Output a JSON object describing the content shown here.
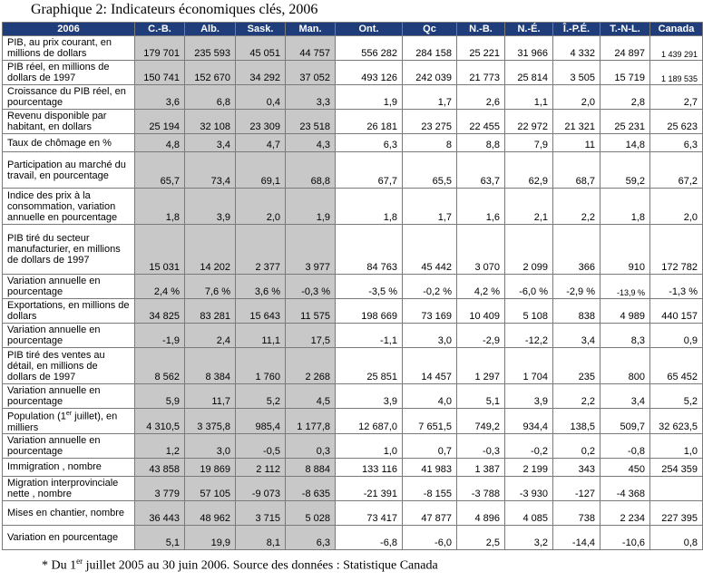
{
  "title": "Graphique 2: Indicateurs économiques clés, 2006",
  "footnote": {
    "prefix": "* Du 1",
    "sup": "er",
    "suffix": " juillet 2005 au 30 juin 2006. Source des données : Statistique Canada"
  },
  "columns": [
    "2006",
    "C.-B.",
    "Alb.",
    "Sask.",
    "Man.",
    "Ont.",
    "Qc",
    "N.-B.",
    "N.-É.",
    "Î.-P.É.",
    "T.-N-L.",
    "Canada"
  ],
  "rows": [
    {
      "label": "PIB, au prix courant, en millions de dollars",
      "values": [
        "179 701",
        "235 593",
        "45 051",
        "44 757",
        "556 282",
        "284 158",
        "25 221",
        "31 966",
        "4 332",
        "24 897",
        "1 439 291"
      ]
    },
    {
      "label": "PIB réel, en millions de dollars de 1997",
      "values": [
        "150 741",
        "152 670",
        "34 292",
        "37 052",
        "493 126",
        "242 039",
        "21 773",
        "25 814",
        "3 505",
        "15 719",
        "1 189 535"
      ]
    },
    {
      "label": "Croissance du PIB réel, en pourcentage",
      "values": [
        "3,6",
        "6,8",
        "0,4",
        "3,3",
        "1,9",
        "1,7",
        "2,6",
        "1,1",
        "2,0",
        "2,8",
        "2,7"
      ]
    },
    {
      "label": "Revenu disponible par habitant, en dollars",
      "values": [
        "25 194",
        "32 108",
        "23 309",
        "23 518",
        "26 181",
        "23 275",
        "22 455",
        "22 972",
        "21 321",
        "25 231",
        "25 623"
      ]
    },
    {
      "label": "Taux de chômage en %",
      "values": [
        "4,8",
        "3,4",
        "4,7",
        "4,3",
        "6,3",
        "8",
        "8,8",
        "7,9",
        "11",
        "14,8",
        "6,3"
      ]
    },
    {
      "label": "Participation au marché du travail, en pourcentage",
      "values": [
        "65,7",
        "73,4",
        "69,1",
        "68,8",
        "67,7",
        "65,5",
        "63,7",
        "62,9",
        "68,7",
        "59,2",
        "67,2"
      ]
    },
    {
      "label": "Indice des prix à la consommation, variation annuelle en pourcentage",
      "values": [
        "1,8",
        "3,9",
        "2,0",
        "1,9",
        "1,8",
        "1,7",
        "1,6",
        "2,1",
        "2,2",
        "1,8",
        "2,0"
      ]
    },
    {
      "label": "PIB tiré du secteur manufacturier, en millions de dollars de 1997",
      "values": [
        "15 031",
        "14 202",
        "2 377",
        "3 977",
        "84 763",
        "45 442",
        "3 070",
        "2 099",
        "366",
        "910",
        "172 782"
      ]
    },
    {
      "label": "Variation annuelle en pourcentage",
      "values": [
        "2,4 %",
        "7,6 %",
        "3,6 %",
        "-0,3 %",
        "-3,5 %",
        "-0,2 %",
        "4,2 %",
        "-6,0 %",
        "-2,9 %",
        "-13,9 %",
        "-1,3 %"
      ]
    },
    {
      "label": "Exportations, en millions de dollars",
      "values": [
        "34 825",
        "83 281",
        "15 643",
        "11 575",
        "198 669",
        "73 169",
        "10 409",
        "5 108",
        "838",
        "4 989",
        "440 157"
      ]
    },
    {
      "label": "Variation annuelle en pourcentage",
      "values": [
        "-1,9",
        "2,4",
        "11,1",
        "17,5",
        "-1,1",
        "3,0",
        "-2,9",
        "-12,2",
        "3,4",
        "8,3",
        "0,9"
      ]
    },
    {
      "label": "PIB tiré des ventes au détail, en millions de dollars de 1997",
      "values": [
        "8 562",
        "8 384",
        "1 760",
        "2 268",
        "25 851",
        "14 457",
        "1 297",
        "1 704",
        "235",
        "800",
        "65 452"
      ]
    },
    {
      "label": "Variation annuelle en pourcentage",
      "values": [
        "5,9",
        "11,7",
        "5,2",
        "4,5",
        "3,9",
        "4,0",
        "5,1",
        "3,9",
        "2,2",
        "3,4",
        "5,2"
      ]
    },
    {
      "label": "Population",
      "label_sup_pre": "(1",
      "label_sup": "er",
      "label_sup_post": " juillet), en milliers",
      "values": [
        "4 310,5",
        "3 375,8",
        "985,4",
        "1 177,8",
        "12 687,0",
        "7 651,5",
        "749,2",
        "934,4",
        "138,5",
        "509,7",
        "32 623,5"
      ]
    },
    {
      "label": "Variation annuelle en pourcentage",
      "values": [
        "1,2",
        "3,0",
        "-0,5",
        "0,3",
        "1,0",
        "0,7",
        "-0,3",
        "-0,2",
        "0,2",
        "-0,8",
        "1,0"
      ]
    },
    {
      "label": "Immigration , nombre",
      "values": [
        "43 858",
        "19 869",
        "2 112",
        "8 884",
        "133 116",
        "41 983",
        "1 387",
        "2 199",
        "343",
        "450",
        "254 359"
      ]
    },
    {
      "label": "Migration interprovinciale nette , nombre",
      "values": [
        "3 779",
        "57 105",
        "-9 073",
        "-8 635",
        "-21 391",
        "-8 155",
        "-3 788",
        "-3 930",
        "-127",
        "-4 368",
        ""
      ]
    },
    {
      "label": "Mises en chantier, nombre",
      "values": [
        "36 443",
        "48 962",
        "3 715",
        "5 028",
        "73 417",
        "47 877",
        "4 896",
        "4 085",
        "738",
        "2 234",
        "227 395"
      ]
    },
    {
      "label": "Variation en pourcentage",
      "values": [
        "5,1",
        "19,9",
        "8,1",
        "6,3",
        "-6,8",
        "-6,0",
        "2,5",
        "3,2",
        "-14,4",
        "-10,6",
        "0,8"
      ]
    }
  ]
}
